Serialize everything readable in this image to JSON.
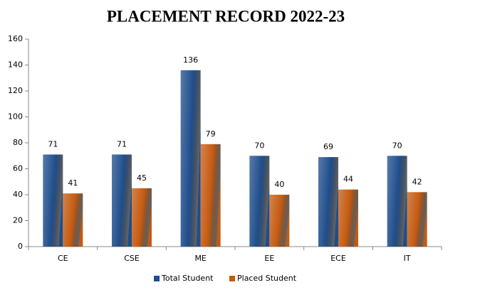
{
  "chart_data": {
    "type": "bar",
    "title": "PLACEMENT RECORD 2022-23",
    "categories": [
      "CE",
      "CSE",
      "ME",
      "EE",
      "ECE",
      "IT"
    ],
    "series": [
      {
        "name": "Total  Student",
        "color": "#1f4e8c",
        "values": [
          71,
          71,
          136,
          70,
          69,
          70
        ]
      },
      {
        "name": "Placed Student",
        "color": "#c55a11",
        "values": [
          41,
          45,
          79,
          40,
          44,
          42
        ]
      }
    ],
    "ylim": [
      0,
      160
    ],
    "yticks": [
      0,
      20,
      40,
      60,
      80,
      100,
      120,
      140,
      160
    ],
    "grid": false,
    "legend": "bottom"
  }
}
